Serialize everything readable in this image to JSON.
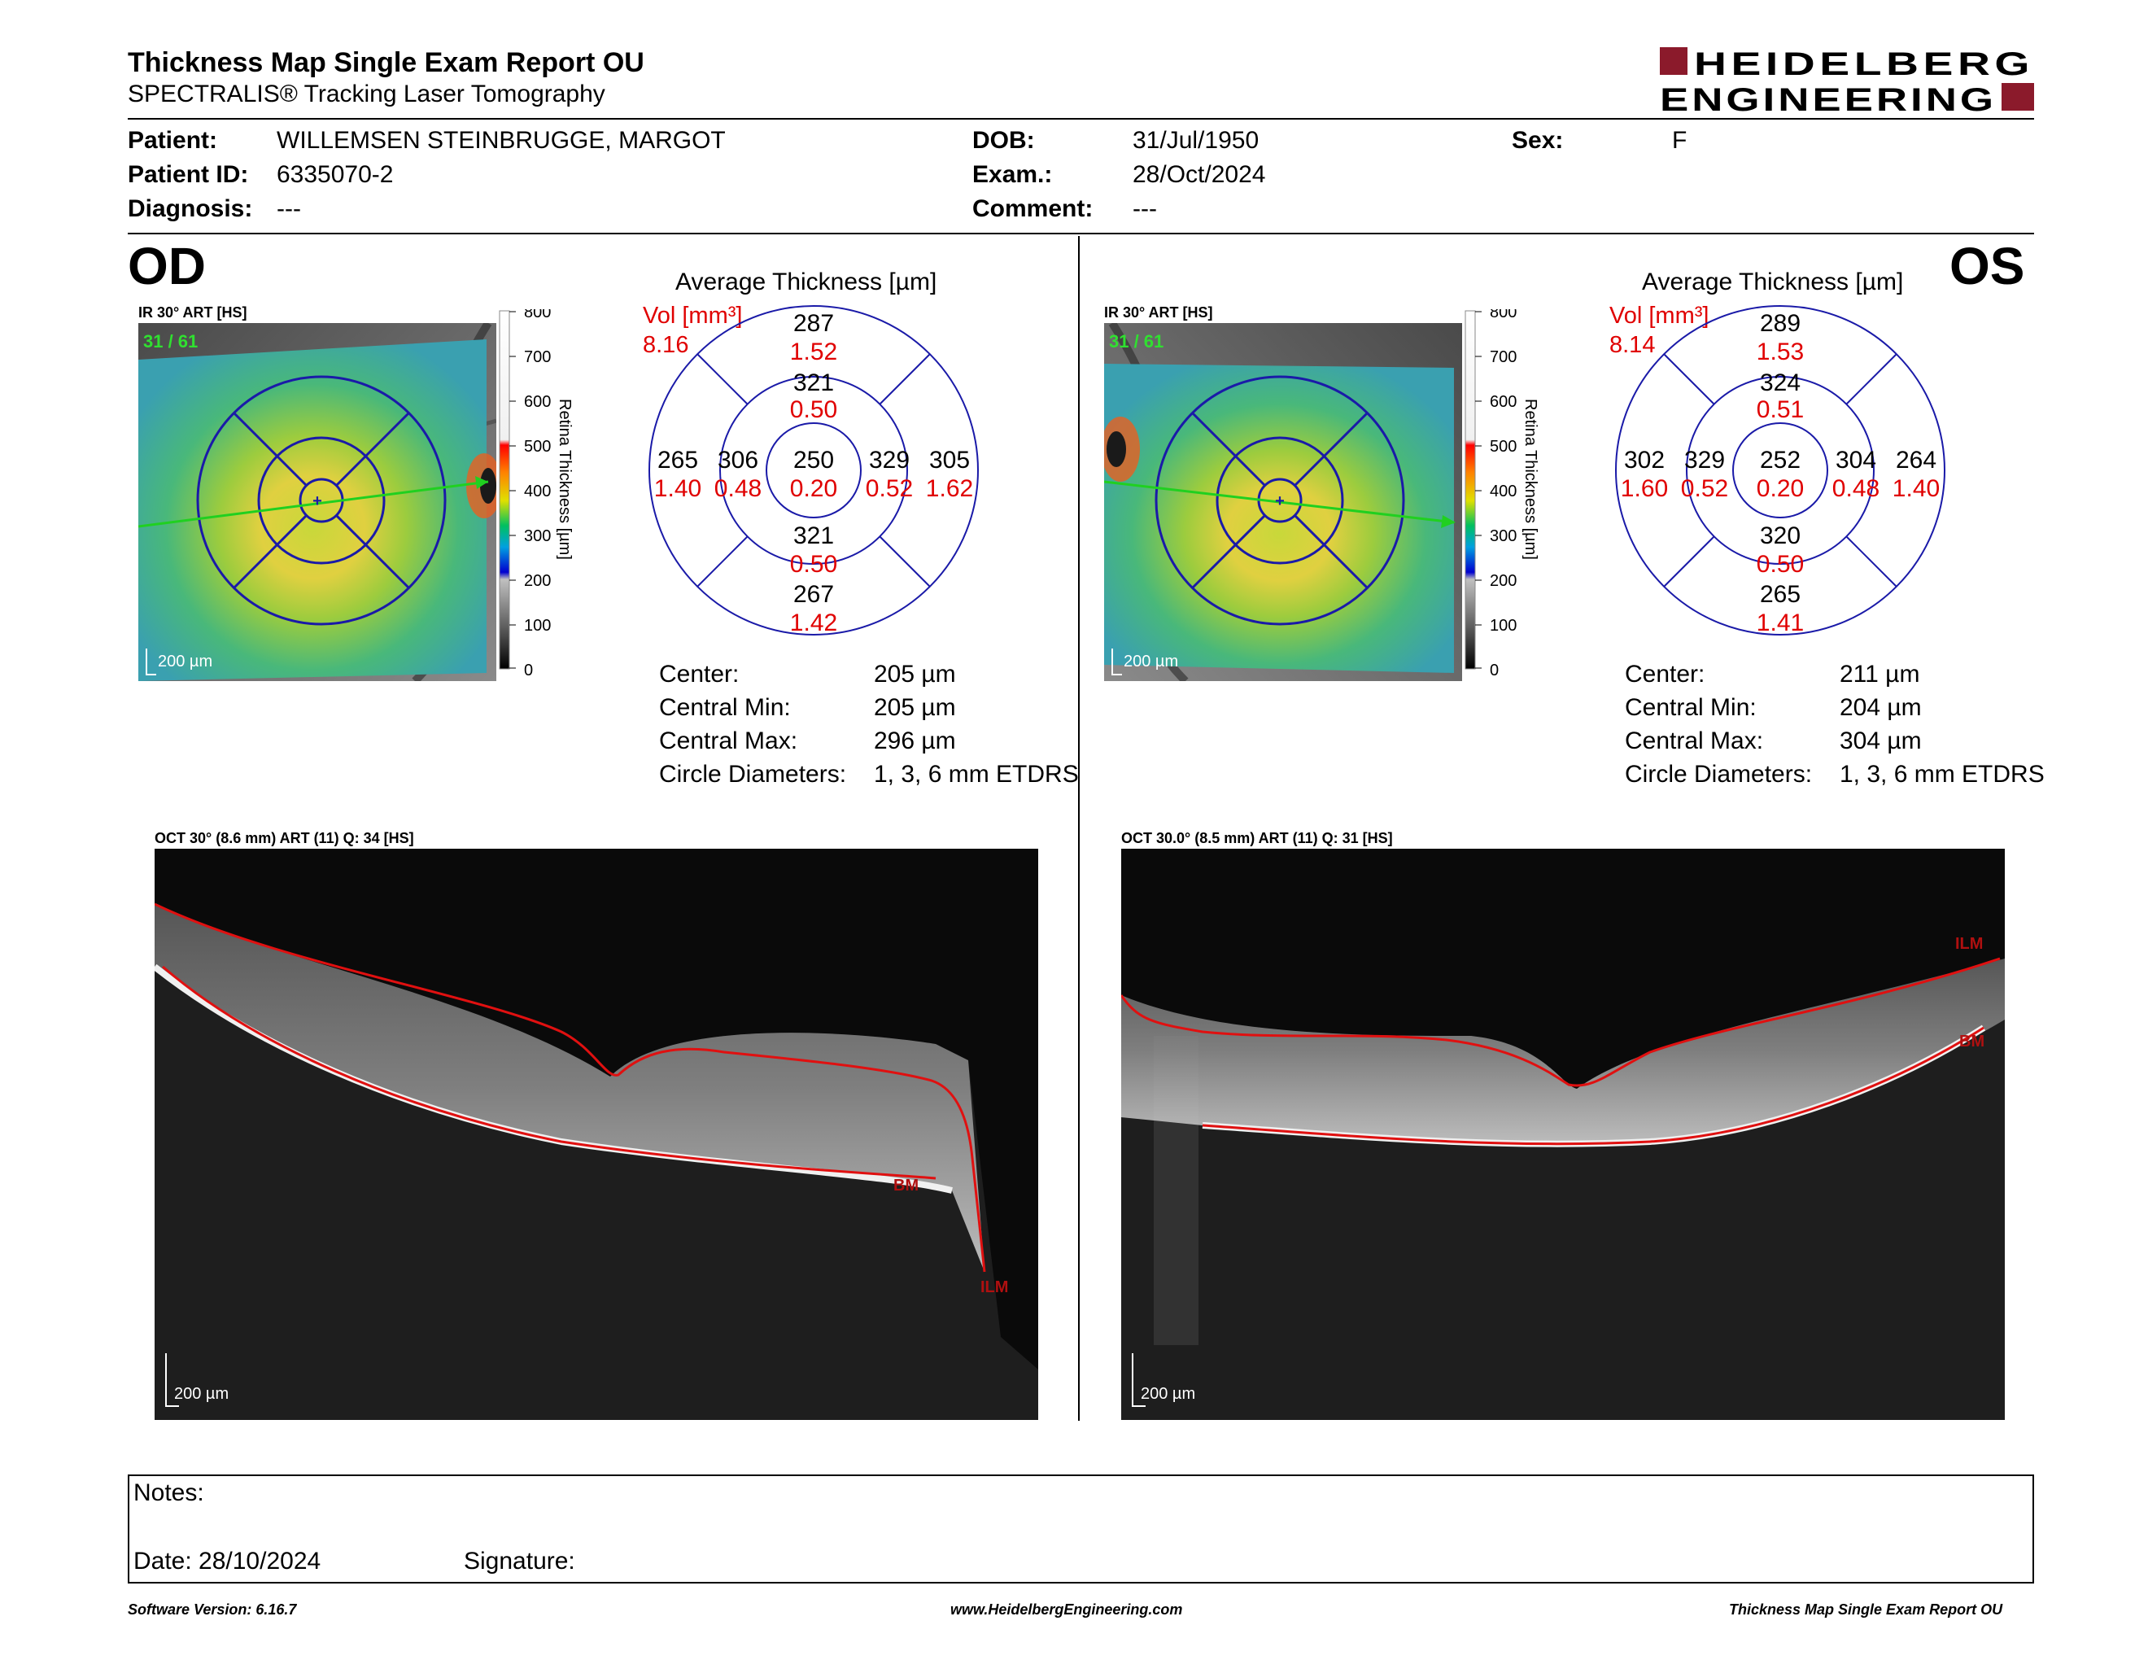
{
  "header": {
    "title": "Thickness Map Single Exam Report OU",
    "subtitle": "SPECTRALIS® Tracking Laser Tomography",
    "logo_line1": "HEIDELBERG",
    "logo_line2": "ENGINEERING"
  },
  "patient": {
    "patient_label": "Patient:",
    "patient_value": "WILLEMSEN STEINBRUGGE, MARGOT",
    "id_label": "Patient ID:",
    "id_value": "6335070-2",
    "diagnosis_label": "Diagnosis:",
    "diagnosis_value": "---",
    "dob_label": "DOB:",
    "dob_value": "31/Jul/1950",
    "exam_label": "Exam.:",
    "exam_value": "28/Oct/2024",
    "comment_label": "Comment:",
    "comment_value": "---",
    "sex_label": "Sex:",
    "sex_value": "F"
  },
  "scale": {
    "ticks": [
      "800",
      "700",
      "600",
      "500",
      "400",
      "300",
      "200",
      "100",
      "0"
    ],
    "title": "Retina  Thickness [µm]"
  },
  "od": {
    "eye": "OD",
    "ir_label": "IR 30° ART [HS]",
    "frame_count": "31 / 61",
    "ir_scalebar": "200 µm",
    "avg_title": "Average Thickness [µm]",
    "vol_label": "Vol [mm³]",
    "vol_value": "8.16",
    "grid": {
      "center": {
        "t": "250",
        "v": "0.20"
      },
      "inner_superior": {
        "t": "321",
        "v": "0.50"
      },
      "inner_inferior": {
        "t": "321",
        "v": "0.50"
      },
      "inner_left": {
        "t": "306",
        "v": "0.48"
      },
      "inner_right": {
        "t": "329",
        "v": "0.52"
      },
      "outer_superior": {
        "t": "287",
        "v": "1.52"
      },
      "outer_inferior": {
        "t": "267",
        "v": "1.42"
      },
      "outer_left": {
        "t": "265",
        "v": "1.40"
      },
      "outer_right": {
        "t": "305",
        "v": "1.62"
      }
    },
    "stats": {
      "center_label": "Center:",
      "center_value": "205 µm",
      "min_label": "Central Min:",
      "min_value": "205 µm",
      "max_label": "Central Max:",
      "max_value": "296 µm",
      "diam_label": "Circle Diameters:",
      "diam_value": "1, 3, 6 mm ETDRS"
    },
    "oct_label": "OCT 30° (8.6 mm) ART (11) Q: 34 [HS]",
    "oct_scalebar": "200 µm",
    "layer_ilm": "ILM",
    "layer_bm": "BM"
  },
  "os": {
    "eye": "OS",
    "ir_label": "IR 30° ART [HS]",
    "frame_count": "31 / 61",
    "ir_scalebar": "200 µm",
    "avg_title": "Average Thickness [µm]",
    "vol_label": "Vol [mm³]",
    "vol_value": "8.14",
    "grid": {
      "center": {
        "t": "252",
        "v": "0.20"
      },
      "inner_superior": {
        "t": "324",
        "v": "0.51"
      },
      "inner_inferior": {
        "t": "320",
        "v": "0.50"
      },
      "inner_left": {
        "t": "329",
        "v": "0.52"
      },
      "inner_right": {
        "t": "304",
        "v": "0.48"
      },
      "outer_superior": {
        "t": "289",
        "v": "1.53"
      },
      "outer_inferior": {
        "t": "265",
        "v": "1.41"
      },
      "outer_left": {
        "t": "302",
        "v": "1.60"
      },
      "outer_right": {
        "t": "264",
        "v": "1.40"
      }
    },
    "stats": {
      "center_label": "Center:",
      "center_value": "211 µm",
      "min_label": "Central Min:",
      "min_value": "204 µm",
      "max_label": "Central Max:",
      "max_value": "304 µm",
      "diam_label": "Circle Diameters:",
      "diam_value": "1, 3, 6 mm ETDRS"
    },
    "oct_label": "OCT 30.0° (8.5 mm) ART (11) Q: 31 [HS]",
    "oct_scalebar": "200 µm",
    "layer_ilm": "ILM",
    "layer_bm": "BM"
  },
  "notes": {
    "notes_label": "Notes:",
    "date_label": "Date: 28/10/2024",
    "signature_label": "Signature:"
  },
  "footer": {
    "software": "Software Version: 6.16.7",
    "website": "www.HeidelbergEngineering.com",
    "report_name": "Thickness Map Single Exam Report OU"
  },
  "colors": {
    "accent_red": "#8b1a2b",
    "grid_blue": "#1a1aa8",
    "value_red": "#e00000",
    "layer_red": "#e01010"
  }
}
